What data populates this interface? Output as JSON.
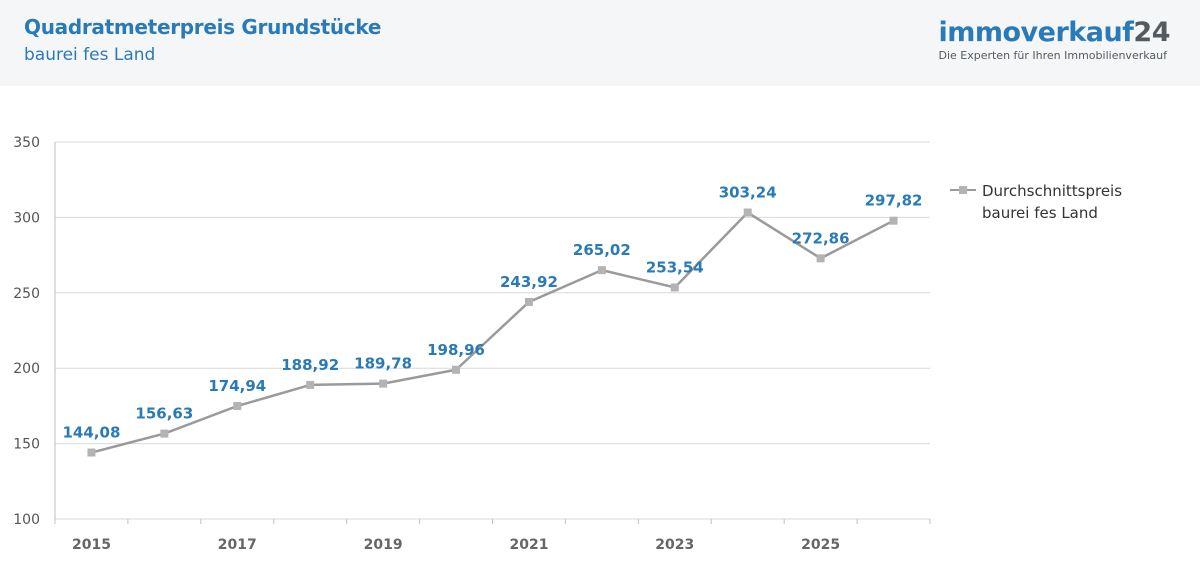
{
  "header": {
    "title": "Quadratmeterpreis Grundstücke",
    "subtitle": "baurei fes Land"
  },
  "brand": {
    "name": "immoverkauf",
    "number": "24",
    "tagline": "Die Experten für Ihren Immobilienverkauf"
  },
  "colors": {
    "accent": "#2a7ab8",
    "line": "#9a9a9a",
    "marker": "#b3b3b3",
    "grid": "#d9d9d9"
  },
  "chart_data": {
    "type": "line",
    "x": [
      2015,
      2016,
      2017,
      2018,
      2019,
      2020,
      2021,
      2022,
      2023,
      2024,
      2025,
      2026
    ],
    "x_tick_labels": [
      "2015",
      "2017",
      "2019",
      "2021",
      "2023",
      "2025"
    ],
    "y_ticks": [
      "100",
      "150",
      "200",
      "250",
      "300",
      "350"
    ],
    "ylim": [
      100,
      350
    ],
    "grid": true,
    "legend_position": "right",
    "series": [
      {
        "name": "Durchschnittspreis baurei fes Land",
        "values": [
          144.08,
          156.63,
          174.94,
          188.92,
          189.78,
          198.96,
          243.92,
          265.02,
          253.54,
          303.24,
          272.86,
          297.82
        ],
        "labels": [
          "144,08",
          "156,63",
          "174,94",
          "188,92",
          "189,78",
          "198,96",
          "243,92",
          "265,02",
          "253,54",
          "303,24",
          "272,86",
          "297,82"
        ]
      }
    ]
  }
}
